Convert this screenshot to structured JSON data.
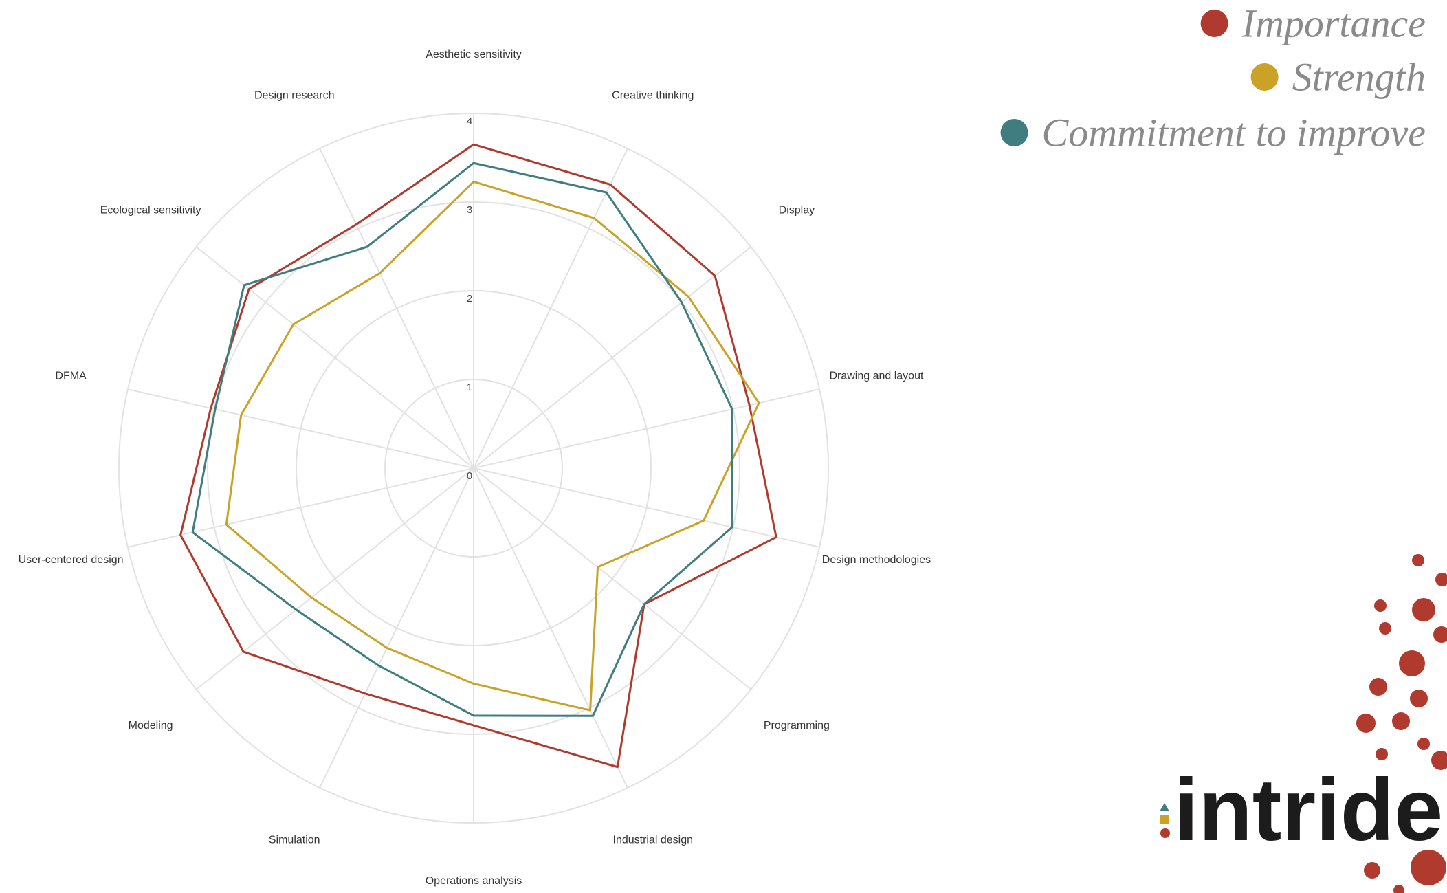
{
  "chart_data": {
    "type": "radar",
    "categories": [
      "Aesthetic sensitivity",
      "Creative thinking",
      "Display",
      "Drawing and layout",
      "Design methodologies",
      "Programming",
      "Industrial design",
      "Operations analysis",
      "Simulation",
      "Modeling",
      "User-centered design",
      "DFMA",
      "Ecological sensitivity",
      "Design research"
    ],
    "series": [
      {
        "name": "Importance",
        "color": "#b03a2e",
        "values": [
          3.65,
          3.55,
          3.48,
          3.19,
          3.5,
          2.46,
          3.74,
          2.9,
          2.82,
          3.32,
          3.39,
          3.04,
          3.24,
          3.05
        ]
      },
      {
        "name": "Strength",
        "color": "#c9a227",
        "values": [
          3.23,
          3.13,
          3.1,
          3.3,
          2.66,
          1.79,
          3.03,
          2.43,
          2.25,
          2.34,
          2.86,
          2.69,
          2.6,
          2.44
        ]
      },
      {
        "name": "Commitment to improve",
        "color": "#3f7d80",
        "values": [
          3.44,
          3.45,
          3.0,
          2.99,
          2.99,
          2.46,
          3.1,
          2.79,
          2.47,
          2.56,
          3.25,
          2.99,
          3.31,
          2.77
        ]
      }
    ],
    "rlim": [
      0,
      4
    ],
    "rticks": [
      0,
      1,
      2,
      3,
      4
    ],
    "grid": true,
    "legend": "top-right"
  },
  "logo": {
    "text": "intride"
  }
}
